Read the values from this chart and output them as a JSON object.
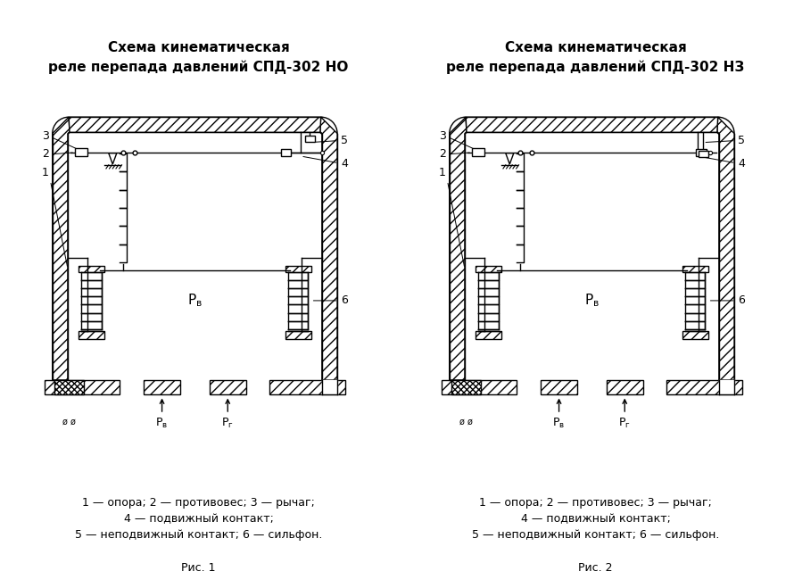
{
  "bg_color": "#ffffff",
  "title_left": "Схема кинематическая\nреле перепада давлений СПД-302 НО",
  "title_right": "Схема кинематическая\nреле перепада давлений СПД-302 НЗ",
  "caption_left": "1 — опора; 2 — противовес; 3 — рычаг;\n4 — подвижный контакт;\n5 — неподвижный контакт; 6 — сильфон.",
  "caption_right": "1 — опора; 2 — противовес; 3 — рычаг;\n4 — подвижный контакт;\n5 — неподвижный контакт; 6 — сильфон.",
  "fig_label_left": "Рис. 1",
  "fig_label_right": "Рис. 2",
  "line_color": "#000000",
  "title_fontsize": 11,
  "caption_fontsize": 9,
  "label_num_fontsize": 9
}
